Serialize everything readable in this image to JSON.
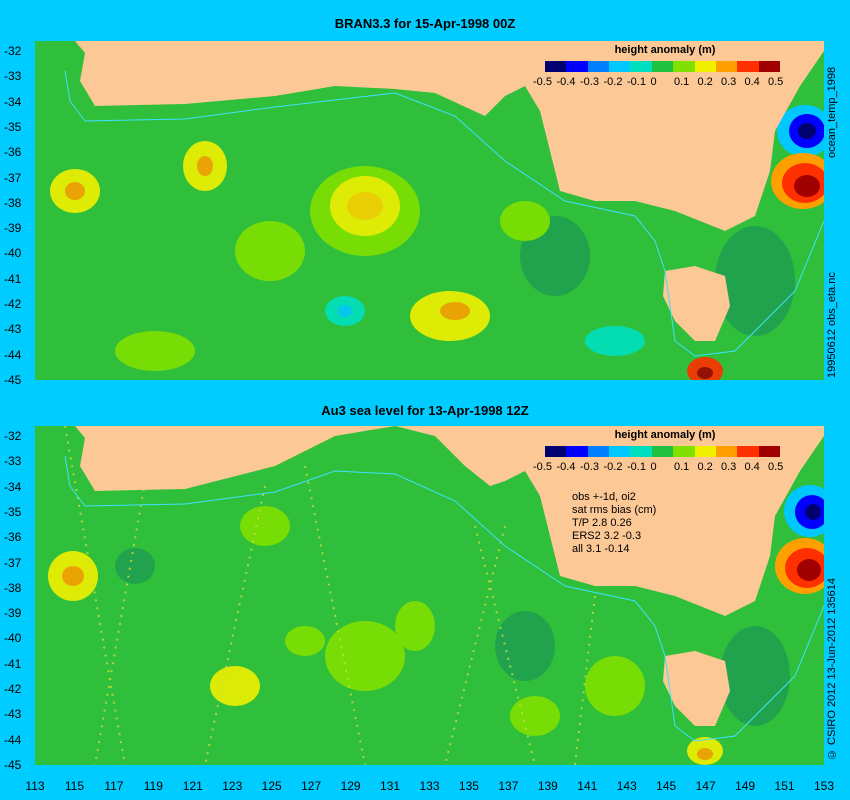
{
  "panels": [
    {
      "title": "BRAN3.3 for 15-Apr-1998 00Z"
    },
    {
      "title": "Au3 sea level  for 13-Apr-1998 12Z"
    }
  ],
  "colorbar": {
    "title": "height anomaly (m)",
    "labels": [
      "-0.5",
      "-0.4",
      "-0.3",
      "-0.2",
      "-0.1",
      "0",
      "0.1",
      "0.2",
      "0.3",
      "0.4",
      "0.5"
    ],
    "colors": [
      "#000070",
      "#0000ff",
      "#0080ff",
      "#00c8ff",
      "#00e0c0",
      "#20c040",
      "#80e000",
      "#f0f000",
      "#ffa000",
      "#ff3000",
      "#a00000"
    ]
  },
  "y_ticks": [
    "-32",
    "-33",
    "-34",
    "-35",
    "-36",
    "-37",
    "-38",
    "-39",
    "-40",
    "-41",
    "-42",
    "-43",
    "-44",
    "-45"
  ],
  "x_ticks": [
    "113",
    "115",
    "117",
    "119",
    "121",
    "123",
    "125",
    "127",
    "129",
    "131",
    "133",
    "135",
    "137",
    "139",
    "141",
    "143",
    "145",
    "147",
    "149",
    "151",
    "153"
  ],
  "side_labels": {
    "top_upper": "ocean_temp_1998",
    "top_lower": "19950612 obs_eta.nc",
    "bottom": "© CSIRO 2012   13-Jun-2012 135614"
  },
  "stats": {
    "lines": [
      "obs +-1d, oi2",
      "sat rms bias (cm)",
      "T/P  2.8 0.26",
      "ERS2 3.2 -0.3",
      "all 3.1 -0.14"
    ]
  },
  "colors": {
    "background": "#00ccff",
    "land": "#fbc896",
    "ocean_base": "#2fbf3a"
  }
}
